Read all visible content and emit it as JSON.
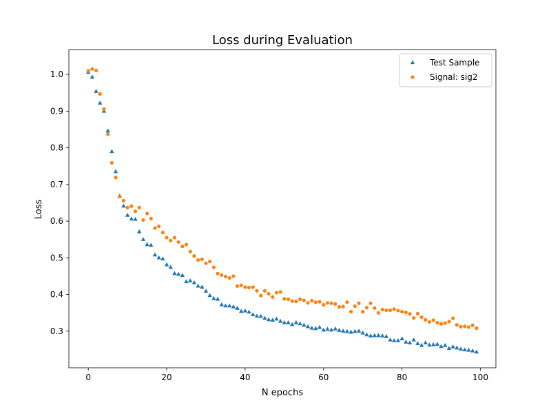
{
  "chart_data": {
    "type": "scatter",
    "title": "Loss during Evaluation",
    "xlabel": "N epochs",
    "ylabel": "Loss",
    "xlim": [
      -4.95,
      103.95
    ],
    "ylim": [
      0.2,
      1.068
    ],
    "xticks": [
      0,
      20,
      40,
      60,
      80,
      100
    ],
    "yticks": [
      0.3,
      0.4,
      0.5,
      0.6,
      0.7,
      0.8,
      0.9,
      1.0
    ],
    "grid": false,
    "legend_position": "top-right",
    "series": [
      {
        "name": "Test Sample",
        "marker": "triangle",
        "color": "#1f77b4",
        "x": [
          0,
          1,
          2,
          3,
          4,
          5,
          6,
          7,
          8,
          9,
          10,
          11,
          12,
          13,
          14,
          15,
          16,
          17,
          18,
          19,
          20,
          21,
          22,
          23,
          24,
          25,
          26,
          27,
          28,
          29,
          30,
          31,
          32,
          33,
          34,
          35,
          36,
          37,
          38,
          39,
          40,
          41,
          42,
          43,
          44,
          45,
          46,
          47,
          48,
          49,
          50,
          51,
          52,
          53,
          54,
          55,
          56,
          57,
          58,
          59,
          60,
          61,
          62,
          63,
          64,
          65,
          66,
          67,
          68,
          69,
          70,
          71,
          72,
          73,
          74,
          75,
          76,
          77,
          78,
          79,
          80,
          81,
          82,
          83,
          84,
          85,
          86,
          87,
          88,
          89,
          90,
          91,
          92,
          93,
          94,
          95,
          96,
          97,
          98,
          99
        ],
        "y": [
          1.006,
          0.993,
          0.954,
          0.922,
          0.9,
          0.846,
          0.79,
          0.735,
          0.668,
          0.641,
          0.616,
          0.606,
          0.605,
          0.571,
          0.55,
          0.536,
          0.534,
          0.508,
          0.5,
          0.497,
          0.481,
          0.474,
          0.457,
          0.455,
          0.452,
          0.435,
          0.437,
          0.432,
          0.423,
          0.42,
          0.409,
          0.397,
          0.389,
          0.387,
          0.372,
          0.369,
          0.369,
          0.366,
          0.362,
          0.354,
          0.355,
          0.352,
          0.345,
          0.341,
          0.34,
          0.335,
          0.331,
          0.33,
          0.333,
          0.327,
          0.323,
          0.323,
          0.318,
          0.323,
          0.32,
          0.316,
          0.312,
          0.308,
          0.307,
          0.31,
          0.303,
          0.305,
          0.303,
          0.306,
          0.302,
          0.3,
          0.299,
          0.297,
          0.299,
          0.3,
          0.295,
          0.29,
          0.287,
          0.288,
          0.288,
          0.287,
          0.285,
          0.276,
          0.274,
          0.274,
          0.279,
          0.27,
          0.268,
          0.276,
          0.266,
          0.261,
          0.268,
          0.262,
          0.263,
          0.264,
          0.258,
          0.261,
          0.253,
          0.257,
          0.254,
          0.251,
          0.249,
          0.248,
          0.246,
          0.243
        ]
      },
      {
        "name": "Signal: sig2",
        "marker": "circle",
        "color": "#ff7f0e",
        "x": [
          0,
          1,
          2,
          3,
          4,
          5,
          6,
          7,
          8,
          9,
          10,
          11,
          12,
          13,
          14,
          15,
          16,
          17,
          18,
          19,
          20,
          21,
          22,
          23,
          24,
          25,
          26,
          27,
          28,
          29,
          30,
          31,
          32,
          33,
          34,
          35,
          36,
          37,
          38,
          39,
          40,
          41,
          42,
          43,
          44,
          45,
          46,
          47,
          48,
          49,
          50,
          51,
          52,
          53,
          54,
          55,
          56,
          57,
          58,
          59,
          60,
          61,
          62,
          63,
          64,
          65,
          66,
          67,
          68,
          69,
          70,
          71,
          72,
          73,
          74,
          75,
          76,
          77,
          78,
          79,
          80,
          81,
          82,
          83,
          84,
          85,
          86,
          87,
          88,
          89,
          90,
          91,
          92,
          93,
          94,
          95,
          96,
          97,
          98,
          99
        ],
        "y": [
          1.01,
          1.015,
          1.011,
          0.947,
          0.906,
          0.837,
          0.759,
          0.719,
          0.667,
          0.656,
          0.637,
          0.641,
          0.627,
          0.637,
          0.603,
          0.621,
          0.607,
          0.581,
          0.586,
          0.569,
          0.555,
          0.547,
          0.555,
          0.543,
          0.531,
          0.536,
          0.517,
          0.505,
          0.494,
          0.496,
          0.485,
          0.49,
          0.474,
          0.457,
          0.453,
          0.449,
          0.445,
          0.45,
          0.423,
          0.425,
          0.42,
          0.419,
          0.42,
          0.41,
          0.397,
          0.41,
          0.402,
          0.393,
          0.405,
          0.407,
          0.388,
          0.387,
          0.382,
          0.381,
          0.387,
          0.384,
          0.377,
          0.383,
          0.379,
          0.38,
          0.372,
          0.377,
          0.376,
          0.374,
          0.366,
          0.367,
          0.379,
          0.353,
          0.368,
          0.376,
          0.353,
          0.364,
          0.376,
          0.363,
          0.35,
          0.359,
          0.357,
          0.357,
          0.36,
          0.356,
          0.353,
          0.351,
          0.347,
          0.336,
          0.348,
          0.338,
          0.331,
          0.325,
          0.33,
          0.323,
          0.32,
          0.322,
          0.326,
          0.335,
          0.317,
          0.312,
          0.313,
          0.311,
          0.316,
          0.308
        ]
      }
    ]
  }
}
